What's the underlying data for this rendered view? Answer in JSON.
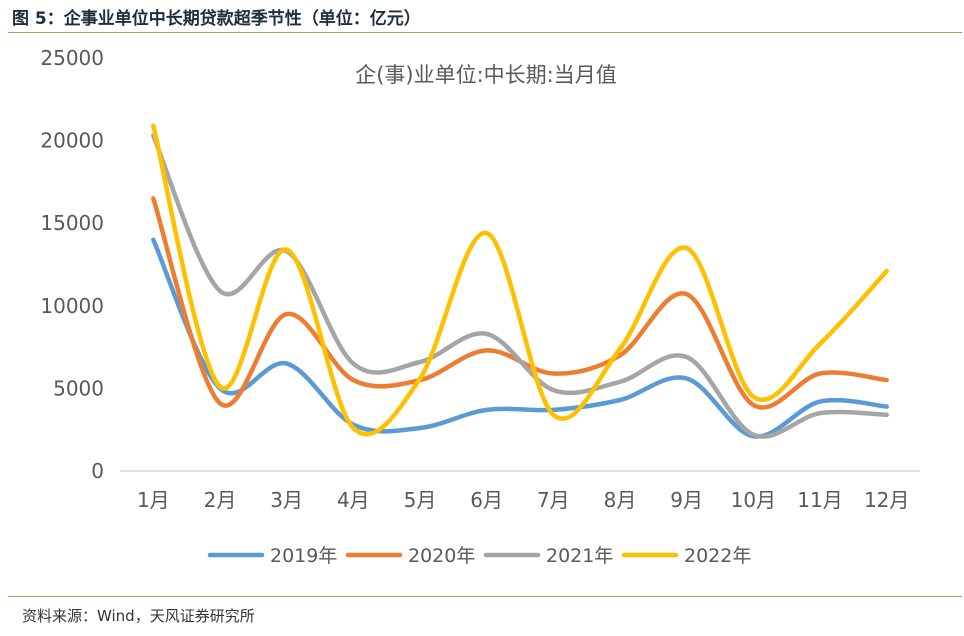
{
  "figure": {
    "title": "图 5：企事业单位中长期贷款超季节性（单位：亿元）",
    "source": "资料来源：Wind，天风证券研究所"
  },
  "colors": {
    "2019年": "#5b9bd5",
    "2020年": "#ed7d31",
    "2021年": "#a5a5a5",
    "2022年": "#ffc000",
    "rule": "#c8965a",
    "axis": "#d9d9d9",
    "text": "#595959"
  },
  "chart_data": {
    "type": "line",
    "title": "企(事)业单位:中长期:当月值",
    "categories": [
      "1月",
      "2月",
      "3月",
      "4月",
      "5月",
      "6月",
      "7月",
      "8月",
      "9月",
      "10月",
      "11月",
      "12月"
    ],
    "yticks": [
      "0",
      "5000",
      "10000",
      "15000",
      "20000",
      "25000"
    ],
    "ylim": [
      0,
      25000
    ],
    "xlabel": "",
    "ylabel": "",
    "legend_position": "bottom",
    "grid": false,
    "smooth": true,
    "series": [
      {
        "name": "2019年",
        "values": [
          14000,
          5000,
          6500,
          2800,
          2600,
          3700,
          3700,
          4300,
          5600,
          2100,
          4200,
          3900
        ]
      },
      {
        "name": "2020年",
        "values": [
          16500,
          4100,
          9500,
          5500,
          5500,
          7300,
          5900,
          7000,
          10700,
          4000,
          5900,
          5500
        ]
      },
      {
        "name": "2021年",
        "values": [
          20300,
          10900,
          13300,
          6500,
          6600,
          8300,
          4900,
          5400,
          6900,
          2200,
          3500,
          3400
        ]
      },
      {
        "name": "2022年",
        "values": [
          20900,
          5100,
          13400,
          2600,
          5600,
          14400,
          3400,
          7400,
          13500,
          4500,
          7700,
          12100
        ]
      }
    ]
  }
}
